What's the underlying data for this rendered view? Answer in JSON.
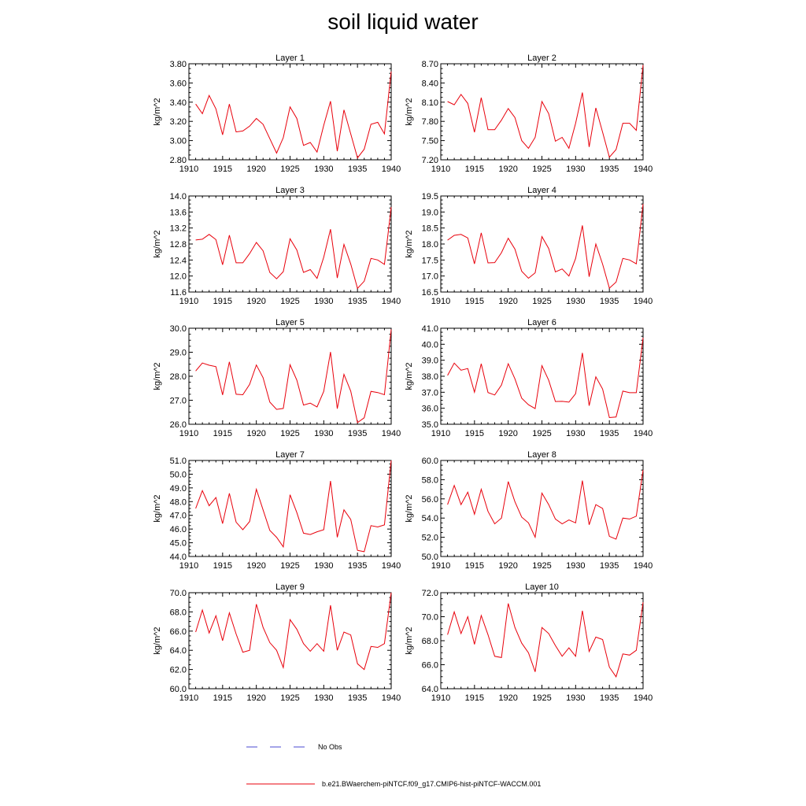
{
  "figure": {
    "title": "soil liquid water",
    "legend": [
      {
        "label": "No Obs",
        "color": "#4a4ad0",
        "dash": "dashed"
      },
      {
        "label": "b.e21.BWaerchem-piNTCF.f09_g17.CMIP6-hist-piNTCF-WACCM.001",
        "color": "#e8000b",
        "dash": "solid"
      }
    ]
  },
  "chart_data": [
    {
      "type": "line",
      "title": "Layer 1",
      "xlabel": "",
      "ylabel": "kg/m^2",
      "xlim": [
        1910,
        1940
      ],
      "ylim": [
        2.8,
        3.8
      ],
      "xticks": [
        1910,
        1915,
        1920,
        1925,
        1930,
        1935,
        1940
      ],
      "yticks": [
        "2.80",
        "3.00",
        "3.20",
        "3.40",
        "3.60",
        "3.80"
      ],
      "x": [
        1911,
        1912,
        1913,
        1914,
        1915,
        1916,
        1917,
        1918,
        1919,
        1920,
        1921,
        1922,
        1923,
        1924,
        1925,
        1926,
        1927,
        1928,
        1929,
        1930,
        1931,
        1932,
        1933,
        1934,
        1935,
        1936,
        1937,
        1938,
        1939,
        1940
      ],
      "series": [
        {
          "name": "b.e21.BWaerchem-piNTCF.f09_g17.CMIP6-hist-piNTCF-WACCM.001",
          "color": "#e8000b",
          "values": [
            3.38,
            3.28,
            3.47,
            3.33,
            3.06,
            3.38,
            3.09,
            3.1,
            3.15,
            3.23,
            3.17,
            3.02,
            2.87,
            3.03,
            3.35,
            3.23,
            2.95,
            2.98,
            2.88,
            3.16,
            3.41,
            2.89,
            3.32,
            3.07,
            2.82,
            2.91,
            3.17,
            3.19,
            3.07,
            3.72
          ]
        }
      ]
    },
    {
      "type": "line",
      "title": "Layer 2",
      "xlabel": "",
      "ylabel": "kg/m^2",
      "xlim": [
        1910,
        1940
      ],
      "ylim": [
        7.2,
        8.7
      ],
      "xticks": [
        1910,
        1915,
        1920,
        1925,
        1930,
        1935,
        1940
      ],
      "yticks": [
        "7.20",
        "7.50",
        "7.80",
        "8.10",
        "8.40",
        "8.70"
      ],
      "x": [
        1911,
        1912,
        1913,
        1914,
        1915,
        1916,
        1917,
        1918,
        1919,
        1920,
        1921,
        1922,
        1923,
        1924,
        1925,
        1926,
        1927,
        1928,
        1929,
        1930,
        1931,
        1932,
        1933,
        1934,
        1935,
        1936,
        1937,
        1938,
        1939,
        1940
      ],
      "series": [
        {
          "name": "b.e21.BWaerchem-piNTCF.f09_g17.CMIP6-hist-piNTCF-WACCM.001",
          "color": "#e8000b",
          "values": [
            8.11,
            8.06,
            8.22,
            8.08,
            7.63,
            8.17,
            7.67,
            7.67,
            7.82,
            8.0,
            7.86,
            7.5,
            7.38,
            7.55,
            8.11,
            7.92,
            7.49,
            7.55,
            7.38,
            7.77,
            8.25,
            7.4,
            8.01,
            7.63,
            7.24,
            7.36,
            7.77,
            7.77,
            7.66,
            8.68
          ]
        }
      ]
    },
    {
      "type": "line",
      "title": "Layer 3",
      "xlabel": "",
      "ylabel": "kg/m^2",
      "xlim": [
        1910,
        1940
      ],
      "ylim": [
        11.6,
        14.0
      ],
      "xticks": [
        1910,
        1915,
        1920,
        1925,
        1930,
        1935,
        1940
      ],
      "yticks": [
        "11.6",
        "12.0",
        "12.4",
        "12.8",
        "13.2",
        "13.6",
        "14.0"
      ],
      "x": [
        1911,
        1912,
        1913,
        1914,
        1915,
        1916,
        1917,
        1918,
        1919,
        1920,
        1921,
        1922,
        1923,
        1924,
        1925,
        1926,
        1927,
        1928,
        1929,
        1930,
        1931,
        1932,
        1933,
        1934,
        1935,
        1936,
        1937,
        1938,
        1939,
        1940
      ],
      "series": [
        {
          "name": "b.e21.BWaerchem-piNTCF.f09_g17.CMIP6-hist-piNTCF-WACCM.001",
          "color": "#e8000b",
          "values": [
            12.9,
            12.92,
            13.04,
            12.91,
            12.28,
            13.02,
            12.33,
            12.33,
            12.56,
            12.84,
            12.63,
            12.09,
            11.93,
            12.11,
            12.93,
            12.65,
            12.09,
            12.16,
            11.94,
            12.47,
            13.17,
            11.95,
            12.79,
            12.3,
            11.69,
            11.87,
            12.44,
            12.4,
            12.29,
            13.72
          ]
        }
      ]
    },
    {
      "type": "line",
      "title": "Layer 4",
      "xlabel": "",
      "ylabel": "kg/m^2",
      "xlim": [
        1910,
        1940
      ],
      "ylim": [
        16.5,
        19.5
      ],
      "xticks": [
        1910,
        1915,
        1920,
        1925,
        1930,
        1935,
        1940
      ],
      "yticks": [
        "16.5",
        "17.0",
        "17.5",
        "18.0",
        "18.5",
        "19.0",
        "19.5"
      ],
      "x": [
        1911,
        1912,
        1913,
        1914,
        1915,
        1916,
        1917,
        1918,
        1919,
        1920,
        1921,
        1922,
        1923,
        1924,
        1925,
        1926,
        1927,
        1928,
        1929,
        1930,
        1931,
        1932,
        1933,
        1934,
        1935,
        1936,
        1937,
        1938,
        1939,
        1940
      ],
      "series": [
        {
          "name": "b.e21.BWaerchem-piNTCF.f09_g17.CMIP6-hist-piNTCF-WACCM.001",
          "color": "#e8000b",
          "values": [
            18.12,
            18.27,
            18.3,
            18.19,
            17.38,
            18.35,
            17.41,
            17.42,
            17.73,
            18.18,
            17.84,
            17.15,
            16.93,
            17.1,
            18.23,
            17.86,
            17.13,
            17.22,
            17.0,
            17.55,
            18.58,
            16.98,
            18.0,
            17.37,
            16.62,
            16.81,
            17.55,
            17.5,
            17.38,
            19.25
          ]
        }
      ]
    },
    {
      "type": "line",
      "title": "Layer 5",
      "xlabel": "",
      "ylabel": "kg/m^2",
      "xlim": [
        1910,
        1940
      ],
      "ylim": [
        26.0,
        30.0
      ],
      "xticks": [
        1910,
        1915,
        1920,
        1925,
        1930,
        1935,
        1940
      ],
      "yticks": [
        "26.0",
        "27.0",
        "28.0",
        "29.0",
        "30.0"
      ],
      "x": [
        1911,
        1912,
        1913,
        1914,
        1915,
        1916,
        1917,
        1918,
        1919,
        1920,
        1921,
        1922,
        1923,
        1924,
        1925,
        1926,
        1927,
        1928,
        1929,
        1930,
        1931,
        1932,
        1933,
        1934,
        1935,
        1936,
        1937,
        1938,
        1939,
        1940
      ],
      "series": [
        {
          "name": "b.e21.BWaerchem-piNTCF.f09_g17.CMIP6-hist-piNTCF-WACCM.001",
          "color": "#e8000b",
          "values": [
            28.22,
            28.55,
            28.46,
            28.4,
            27.22,
            28.6,
            27.25,
            27.23,
            27.66,
            28.47,
            27.94,
            26.92,
            26.62,
            26.66,
            28.48,
            27.84,
            26.8,
            26.88,
            26.72,
            27.37,
            29.01,
            26.65,
            28.08,
            27.38,
            26.07,
            26.27,
            27.37,
            27.32,
            27.23,
            29.95
          ]
        }
      ]
    },
    {
      "type": "line",
      "title": "Layer 6",
      "xlabel": "",
      "ylabel": "kg/m^2",
      "xlim": [
        1910,
        1940
      ],
      "ylim": [
        35.0,
        41.0
      ],
      "xticks": [
        1910,
        1915,
        1920,
        1925,
        1930,
        1935,
        1940
      ],
      "yticks": [
        "35.0",
        "36.0",
        "37.0",
        "38.0",
        "39.0",
        "40.0",
        "41.0"
      ],
      "x": [
        1911,
        1912,
        1913,
        1914,
        1915,
        1916,
        1917,
        1918,
        1919,
        1920,
        1921,
        1922,
        1923,
        1924,
        1925,
        1926,
        1927,
        1928,
        1929,
        1930,
        1931,
        1932,
        1933,
        1934,
        1935,
        1936,
        1937,
        1938,
        1939,
        1940
      ],
      "series": [
        {
          "name": "b.e21.BWaerchem-piNTCF.f09_g17.CMIP6-hist-piNTCF-WACCM.001",
          "color": "#e8000b",
          "values": [
            38.05,
            38.82,
            38.38,
            38.48,
            37.0,
            38.78,
            36.98,
            36.83,
            37.45,
            38.78,
            37.84,
            36.63,
            36.22,
            35.98,
            38.66,
            37.75,
            36.42,
            36.43,
            36.38,
            36.91,
            39.46,
            36.16,
            37.96,
            37.2,
            35.42,
            35.45,
            37.07,
            36.97,
            36.97,
            40.41
          ]
        }
      ]
    },
    {
      "type": "line",
      "title": "Layer 7",
      "xlabel": "",
      "ylabel": "kg/m^2",
      "xlim": [
        1910,
        1940
      ],
      "ylim": [
        44.0,
        51.0
      ],
      "xticks": [
        1910,
        1915,
        1920,
        1925,
        1930,
        1935,
        1940
      ],
      "yticks": [
        "44.0",
        "45.0",
        "46.0",
        "47.0",
        "48.0",
        "49.0",
        "50.0",
        "51.0"
      ],
      "x": [
        1911,
        1912,
        1913,
        1914,
        1915,
        1916,
        1917,
        1918,
        1919,
        1920,
        1921,
        1922,
        1923,
        1924,
        1925,
        1926,
        1927,
        1928,
        1929,
        1930,
        1931,
        1932,
        1933,
        1934,
        1935,
        1936,
        1937,
        1938,
        1939,
        1940
      ],
      "series": [
        {
          "name": "b.e21.BWaerchem-piNTCF.f09_g17.CMIP6-hist-piNTCF-WACCM.001",
          "color": "#e8000b",
          "values": [
            47.5,
            48.8,
            47.7,
            48.3,
            46.4,
            48.6,
            46.5,
            45.95,
            46.55,
            48.9,
            47.4,
            45.9,
            45.4,
            44.7,
            48.5,
            47.2,
            45.7,
            45.6,
            45.8,
            45.95,
            49.5,
            45.4,
            47.4,
            46.7,
            44.45,
            44.35,
            46.25,
            46.15,
            46.3,
            51.0
          ]
        }
      ]
    },
    {
      "type": "line",
      "title": "Layer 8",
      "xlabel": "",
      "ylabel": "kg/m^2",
      "xlim": [
        1910,
        1940
      ],
      "ylim": [
        50.0,
        60.0
      ],
      "xticks": [
        1910,
        1915,
        1920,
        1925,
        1930,
        1935,
        1940
      ],
      "yticks": [
        "50.0",
        "52.0",
        "54.0",
        "56.0",
        "58.0",
        "60.0"
      ],
      "x": [
        1911,
        1912,
        1913,
        1914,
        1915,
        1916,
        1917,
        1918,
        1919,
        1920,
        1921,
        1922,
        1923,
        1924,
        1925,
        1926,
        1927,
        1928,
        1929,
        1930,
        1931,
        1932,
        1933,
        1934,
        1935,
        1936,
        1937,
        1938,
        1939,
        1940
      ],
      "series": [
        {
          "name": "b.e21.BWaerchem-piNTCF.f09_g17.CMIP6-hist-piNTCF-WACCM.001",
          "color": "#e8000b",
          "values": [
            55.4,
            57.4,
            55.4,
            56.7,
            54.4,
            57.0,
            54.7,
            53.4,
            54.0,
            57.8,
            55.7,
            54.1,
            53.5,
            52.0,
            56.6,
            55.4,
            53.9,
            53.4,
            53.8,
            53.5,
            57.9,
            53.3,
            55.4,
            55.0,
            52.1,
            51.8,
            54.0,
            53.9,
            54.2,
            59.0
          ]
        }
      ]
    },
    {
      "type": "line",
      "title": "Layer 9",
      "xlabel": "",
      "ylabel": "kg/m^2",
      "xlim": [
        1910,
        1940
      ],
      "ylim": [
        60.0,
        70.0
      ],
      "xticks": [
        1910,
        1915,
        1920,
        1925,
        1930,
        1935,
        1940
      ],
      "yticks": [
        "60.0",
        "62.0",
        "64.0",
        "66.0",
        "68.0",
        "70.0"
      ],
      "x": [
        1911,
        1912,
        1913,
        1914,
        1915,
        1916,
        1917,
        1918,
        1919,
        1920,
        1921,
        1922,
        1923,
        1924,
        1925,
        1926,
        1927,
        1928,
        1929,
        1930,
        1931,
        1932,
        1933,
        1934,
        1935,
        1936,
        1937,
        1938,
        1939,
        1940
      ],
      "series": [
        {
          "name": "b.e21.BWaerchem-piNTCF.f09_g17.CMIP6-hist-piNTCF-WACCM.001",
          "color": "#e8000b",
          "values": [
            65.9,
            68.2,
            65.8,
            67.6,
            65.0,
            67.9,
            65.7,
            63.8,
            64.0,
            68.8,
            66.4,
            64.8,
            64.0,
            62.2,
            67.2,
            66.2,
            64.7,
            63.9,
            64.7,
            63.9,
            68.7,
            64.0,
            65.9,
            65.6,
            62.6,
            62.0,
            64.4,
            64.3,
            64.7,
            70.0
          ]
        }
      ]
    },
    {
      "type": "line",
      "title": "Layer 10",
      "xlabel": "",
      "ylabel": "kg/m^2",
      "xlim": [
        1910,
        1940
      ],
      "ylim": [
        64.0,
        72.0
      ],
      "xticks": [
        1910,
        1915,
        1920,
        1925,
        1930,
        1935,
        1940
      ],
      "yticks": [
        "64.0",
        "66.0",
        "68.0",
        "70.0",
        "72.0"
      ],
      "x": [
        1911,
        1912,
        1913,
        1914,
        1915,
        1916,
        1917,
        1918,
        1919,
        1920,
        1921,
        1922,
        1923,
        1924,
        1925,
        1926,
        1927,
        1928,
        1929,
        1930,
        1931,
        1932,
        1933,
        1934,
        1935,
        1936,
        1937,
        1938,
        1939,
        1940
      ],
      "series": [
        {
          "name": "b.e21.BWaerchem-piNTCF.f09_g17.CMIP6-hist-piNTCF-WACCM.001",
          "color": "#e8000b",
          "values": [
            68.5,
            70.4,
            68.6,
            70.0,
            67.7,
            70.1,
            68.5,
            66.7,
            66.6,
            71.1,
            69.1,
            67.8,
            67.0,
            65.4,
            69.1,
            68.6,
            67.6,
            66.7,
            67.4,
            66.7,
            70.5,
            67.1,
            68.3,
            68.1,
            65.8,
            65.0,
            66.9,
            66.8,
            67.2,
            71.2
          ]
        }
      ]
    }
  ]
}
